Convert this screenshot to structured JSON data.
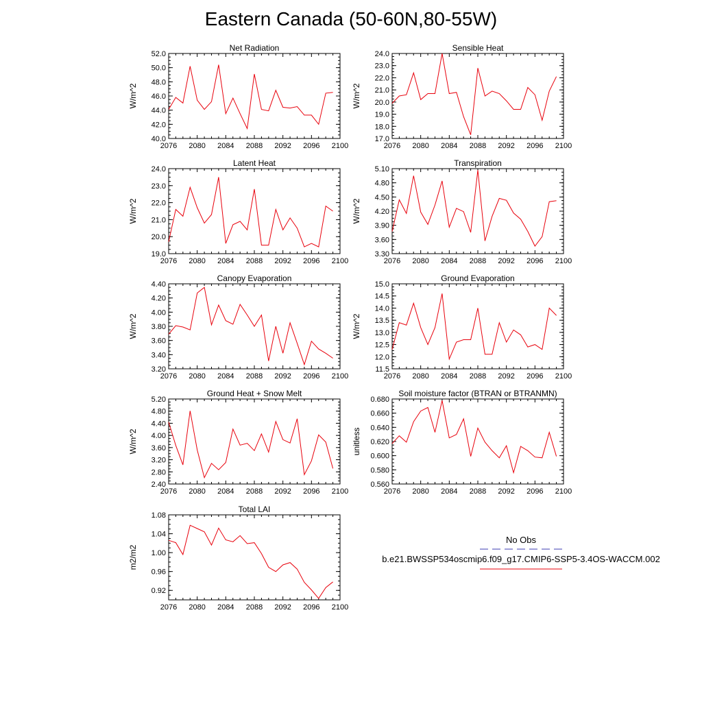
{
  "figure": {
    "title": "Eastern Canada (50-60N,80-55W)"
  },
  "legend": {
    "obs_label": "No Obs",
    "obs_color": "#3b3bb0",
    "case_label": "b.e21.BWSSP534oscmip6.f09_g17.CMIP6-SSP5-3.4OS-WACCM.002",
    "case_color": "#e8000b"
  },
  "chart_data": [
    {
      "type": "line",
      "title": "Net Radiation",
      "ylabel": "W/m^2",
      "xlim": [
        2076,
        2100
      ],
      "xticks": [
        "2076",
        "2080",
        "2084",
        "2088",
        "2092",
        "2096",
        "2100"
      ],
      "ylim": [
        40,
        52
      ],
      "yticks": [
        "40.0",
        "42.0",
        "44.0",
        "46.0",
        "48.0",
        "50.0",
        "52.0"
      ],
      "x": [
        2076,
        2077,
        2078,
        2079,
        2080,
        2081,
        2082,
        2083,
        2084,
        2085,
        2086,
        2087,
        2088,
        2089,
        2090,
        2091,
        2092,
        2093,
        2094,
        2095,
        2096,
        2097,
        2098,
        2099
      ],
      "series": [
        {
          "values": [
            44.1,
            45.8,
            45.0,
            50.2,
            45.4,
            44.1,
            45.2,
            50.4,
            43.5,
            45.7,
            43.5,
            41.4,
            49.1,
            44.1,
            43.9,
            46.8,
            44.4,
            44.3,
            44.5,
            43.3,
            43.3,
            42.0,
            46.4,
            46.5
          ]
        }
      ]
    },
    {
      "type": "line",
      "title": "Sensible Heat",
      "ylabel": "W/m^2",
      "xlim": [
        2076,
        2100
      ],
      "xticks": [
        "2076",
        "2080",
        "2084",
        "2088",
        "2092",
        "2096",
        "2100"
      ],
      "ylim": [
        17,
        24
      ],
      "yticks": [
        "17.0",
        "18.0",
        "19.0",
        "20.0",
        "21.0",
        "22.0",
        "23.0",
        "24.0"
      ],
      "x": [
        2076,
        2077,
        2078,
        2079,
        2080,
        2081,
        2082,
        2083,
        2084,
        2085,
        2086,
        2087,
        2088,
        2089,
        2090,
        2091,
        2092,
        2093,
        2094,
        2095,
        2096,
        2097,
        2098,
        2099
      ],
      "series": [
        {
          "values": [
            19.9,
            20.5,
            20.6,
            22.4,
            20.2,
            20.7,
            20.7,
            24.0,
            20.7,
            20.8,
            18.8,
            17.3,
            22.8,
            20.5,
            20.9,
            20.7,
            20.1,
            19.4,
            19.4,
            21.2,
            20.6,
            18.5,
            20.9,
            22.1
          ]
        }
      ]
    },
    {
      "type": "line",
      "title": "Latent Heat",
      "ylabel": "W/m^2",
      "xlim": [
        2076,
        2100
      ],
      "xticks": [
        "2076",
        "2080",
        "2084",
        "2088",
        "2092",
        "2096",
        "2100"
      ],
      "ylim": [
        19,
        24
      ],
      "yticks": [
        "19.0",
        "20.0",
        "21.0",
        "22.0",
        "23.0",
        "24.0"
      ],
      "x": [
        2076,
        2077,
        2078,
        2079,
        2080,
        2081,
        2082,
        2083,
        2084,
        2085,
        2086,
        2087,
        2088,
        2089,
        2090,
        2091,
        2092,
        2093,
        2094,
        2095,
        2096,
        2097,
        2098,
        2099
      ],
      "series": [
        {
          "values": [
            19.7,
            21.6,
            21.2,
            22.9,
            21.7,
            20.8,
            21.3,
            23.5,
            19.6,
            20.7,
            20.9,
            20.4,
            22.8,
            19.5,
            19.5,
            21.6,
            20.4,
            21.1,
            20.5,
            19.4,
            19.6,
            19.4,
            21.8,
            21.5
          ]
        }
      ]
    },
    {
      "type": "line",
      "title": "Transpiration",
      "ylabel": "W/m^2",
      "xlim": [
        2076,
        2100
      ],
      "xticks": [
        "2076",
        "2080",
        "2084",
        "2088",
        "2092",
        "2096",
        "2100"
      ],
      "ylim": [
        3.3,
        5.1
      ],
      "yticks": [
        "3.30",
        "3.60",
        "3.90",
        "4.20",
        "4.50",
        "4.80",
        "5.10"
      ],
      "x": [
        2076,
        2077,
        2078,
        2079,
        2080,
        2081,
        2082,
        2083,
        2084,
        2085,
        2086,
        2087,
        2088,
        2089,
        2090,
        2091,
        2092,
        2093,
        2094,
        2095,
        2096,
        2097,
        2098,
        2099
      ],
      "series": [
        {
          "values": [
            3.77,
            4.44,
            4.15,
            4.95,
            4.18,
            3.92,
            4.33,
            4.84,
            3.86,
            4.26,
            4.19,
            3.75,
            5.07,
            3.57,
            4.09,
            4.47,
            4.43,
            4.16,
            4.03,
            3.77,
            3.46,
            3.66,
            4.4,
            4.42
          ]
        }
      ]
    },
    {
      "type": "line",
      "title": "Canopy Evaporation",
      "ylabel": "W/m^2",
      "xlim": [
        2076,
        2100
      ],
      "xticks": [
        "2076",
        "2080",
        "2084",
        "2088",
        "2092",
        "2096",
        "2100"
      ],
      "ylim": [
        3.2,
        4.4
      ],
      "yticks": [
        "3.20",
        "3.40",
        "3.60",
        "3.80",
        "4.00",
        "4.20",
        "4.40"
      ],
      "x": [
        2076,
        2077,
        2078,
        2079,
        2080,
        2081,
        2082,
        2083,
        2084,
        2085,
        2086,
        2087,
        2088,
        2089,
        2090,
        2091,
        2092,
        2093,
        2094,
        2095,
        2096,
        2097,
        2098,
        2099
      ],
      "series": [
        {
          "values": [
            3.69,
            3.81,
            3.79,
            3.75,
            4.27,
            4.35,
            3.82,
            4.1,
            3.88,
            3.83,
            4.11,
            3.96,
            3.8,
            3.96,
            3.31,
            3.8,
            3.42,
            3.85,
            3.56,
            3.26,
            3.59,
            3.48,
            3.42,
            3.35
          ]
        }
      ]
    },
    {
      "type": "line",
      "title": "Ground Evaporation",
      "ylabel": "W/m^2",
      "xlim": [
        2076,
        2100
      ],
      "xticks": [
        "2076",
        "2080",
        "2084",
        "2088",
        "2092",
        "2096",
        "2100"
      ],
      "ylim": [
        11.5,
        15.0
      ],
      "yticks": [
        "11.5",
        "12.0",
        "12.5",
        "13.0",
        "13.5",
        "14.0",
        "14.5",
        "15.0"
      ],
      "x": [
        2076,
        2077,
        2078,
        2079,
        2080,
        2081,
        2082,
        2083,
        2084,
        2085,
        2086,
        2087,
        2088,
        2089,
        2090,
        2091,
        2092,
        2093,
        2094,
        2095,
        2096,
        2097,
        2098,
        2099
      ],
      "series": [
        {
          "values": [
            12.3,
            13.4,
            13.3,
            14.2,
            13.2,
            12.5,
            13.2,
            14.6,
            11.9,
            12.6,
            12.7,
            12.7,
            14.0,
            12.1,
            12.1,
            13.4,
            12.6,
            13.1,
            12.9,
            12.4,
            12.5,
            12.3,
            14.0,
            13.7
          ]
        }
      ]
    },
    {
      "type": "line",
      "title": "Ground Heat + Snow Melt",
      "ylabel": "W/m^2",
      "xlim": [
        2076,
        2100
      ],
      "xticks": [
        "2076",
        "2080",
        "2084",
        "2088",
        "2092",
        "2096",
        "2100"
      ],
      "ylim": [
        2.4,
        5.2
      ],
      "yticks": [
        "2.40",
        "2.80",
        "3.20",
        "3.60",
        "4.00",
        "4.40",
        "4.80",
        "5.20"
      ],
      "x": [
        2076,
        2077,
        2078,
        2079,
        2080,
        2081,
        2082,
        2083,
        2084,
        2085,
        2086,
        2087,
        2088,
        2089,
        2090,
        2091,
        2092,
        2093,
        2094,
        2095,
        2096,
        2097,
        2098,
        2099
      ],
      "series": [
        {
          "values": [
            4.44,
            3.67,
            3.03,
            4.81,
            3.52,
            2.61,
            3.08,
            2.87,
            3.11,
            4.21,
            3.68,
            3.74,
            3.5,
            4.05,
            3.45,
            4.46,
            3.86,
            3.75,
            4.55,
            2.71,
            3.16,
            4.02,
            3.78,
            2.91
          ]
        }
      ]
    },
    {
      "type": "line",
      "title": "Soil moisture factor (BTRAN or BTRANMN)",
      "ylabel": "unitless",
      "xlim": [
        2076,
        2100
      ],
      "xticks": [
        "2076",
        "2080",
        "2084",
        "2088",
        "2092",
        "2096",
        "2100"
      ],
      "ylim": [
        0.56,
        0.68
      ],
      "yticks": [
        "0.560",
        "0.580",
        "0.600",
        "0.620",
        "0.640",
        "0.660",
        "0.680"
      ],
      "x": [
        2076,
        2077,
        2078,
        2079,
        2080,
        2081,
        2082,
        2083,
        2084,
        2085,
        2086,
        2087,
        2088,
        2089,
        2090,
        2091,
        2092,
        2093,
        2094,
        2095,
        2096,
        2097,
        2098,
        2099
      ],
      "series": [
        {
          "values": [
            0.617,
            0.628,
            0.619,
            0.648,
            0.663,
            0.668,
            0.633,
            0.678,
            0.625,
            0.63,
            0.652,
            0.599,
            0.639,
            0.619,
            0.607,
            0.597,
            0.614,
            0.576,
            0.613,
            0.607,
            0.598,
            0.597,
            0.633,
            0.599
          ]
        }
      ]
    },
    {
      "type": "line",
      "title": "Total LAI",
      "ylabel": "m2/m2",
      "xlim": [
        2076,
        2100
      ],
      "xticks": [
        "2076",
        "2080",
        "2084",
        "2088",
        "2092",
        "2096",
        "2100"
      ],
      "ylim": [
        0.9,
        1.08
      ],
      "yticks": [
        "0.92",
        "0.96",
        "1.00",
        "1.04",
        "1.08"
      ],
      "x": [
        2076,
        2077,
        2078,
        2079,
        2080,
        2081,
        2082,
        2083,
        2084,
        2085,
        2086,
        2087,
        2088,
        2089,
        2090,
        2091,
        2092,
        2093,
        2094,
        2095,
        2096,
        2097,
        2098,
        2099
      ],
      "series": [
        {
          "values": [
            1.026,
            1.021,
            0.996,
            1.058,
            1.051,
            1.044,
            1.016,
            1.052,
            1.027,
            1.023,
            1.036,
            1.019,
            1.021,
            0.998,
            0.969,
            0.96,
            0.974,
            0.979,
            0.965,
            0.937,
            0.921,
            0.903,
            0.926,
            0.938
          ]
        }
      ]
    }
  ]
}
